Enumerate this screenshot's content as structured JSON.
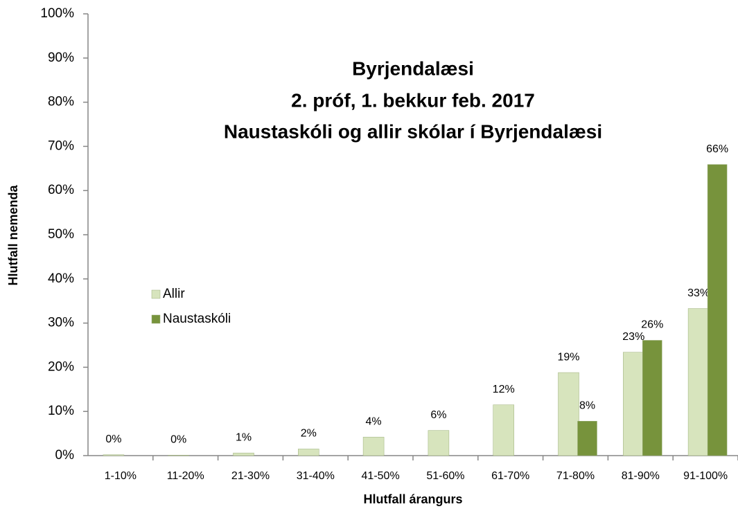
{
  "chart_data": {
    "type": "bar",
    "title": [
      "Byrjendalæsi",
      "2. próf, 1. bekkur feb. 2017",
      "Naustaskóli og allir skólar í Byrjendalæsi"
    ],
    "xlabel": "Hlutfall árangurs",
    "ylabel": "Hlutfall nemenda",
    "categories": [
      "1-10%",
      "11-20%",
      "21-30%",
      "31-40%",
      "41-50%",
      "51-60%",
      "61-70%",
      "71-80%",
      "81-90%",
      "91-100%"
    ],
    "series": [
      {
        "name": "Allir",
        "color": "#d7e4bd",
        "values": [
          0.2,
          0.1,
          0.6,
          1.5,
          4.2,
          5.7,
          11.5,
          18.8,
          23.4,
          33.3
        ],
        "value_labels": [
          "0%",
          "0%",
          "1%",
          "2%",
          "4%",
          "6%",
          "12%",
          "19%",
          "23%",
          "33%"
        ]
      },
      {
        "name": "Naustaskóli",
        "color": "#77933c",
        "values": [
          null,
          null,
          null,
          null,
          null,
          null,
          null,
          7.8,
          26.1,
          65.9
        ],
        "value_labels": [
          null,
          null,
          null,
          null,
          null,
          null,
          null,
          "8%",
          "26%",
          "66%"
        ]
      }
    ],
    "ylim": [
      0,
      100
    ],
    "yticks": [
      {
        "value": 0,
        "label": "0%"
      },
      {
        "value": 10,
        "label": "10%"
      },
      {
        "value": 20,
        "label": "20%"
      },
      {
        "value": 30,
        "label": "30%"
      },
      {
        "value": 40,
        "label": "40%"
      },
      {
        "value": 50,
        "label": "50%"
      },
      {
        "value": 60,
        "label": "60%"
      },
      {
        "value": 70,
        "label": "70%"
      },
      {
        "value": 80,
        "label": "80%"
      },
      {
        "value": 90,
        "label": "90%"
      },
      {
        "value": 100,
        "label": "100%"
      }
    ],
    "grid": false,
    "legend": "left"
  }
}
